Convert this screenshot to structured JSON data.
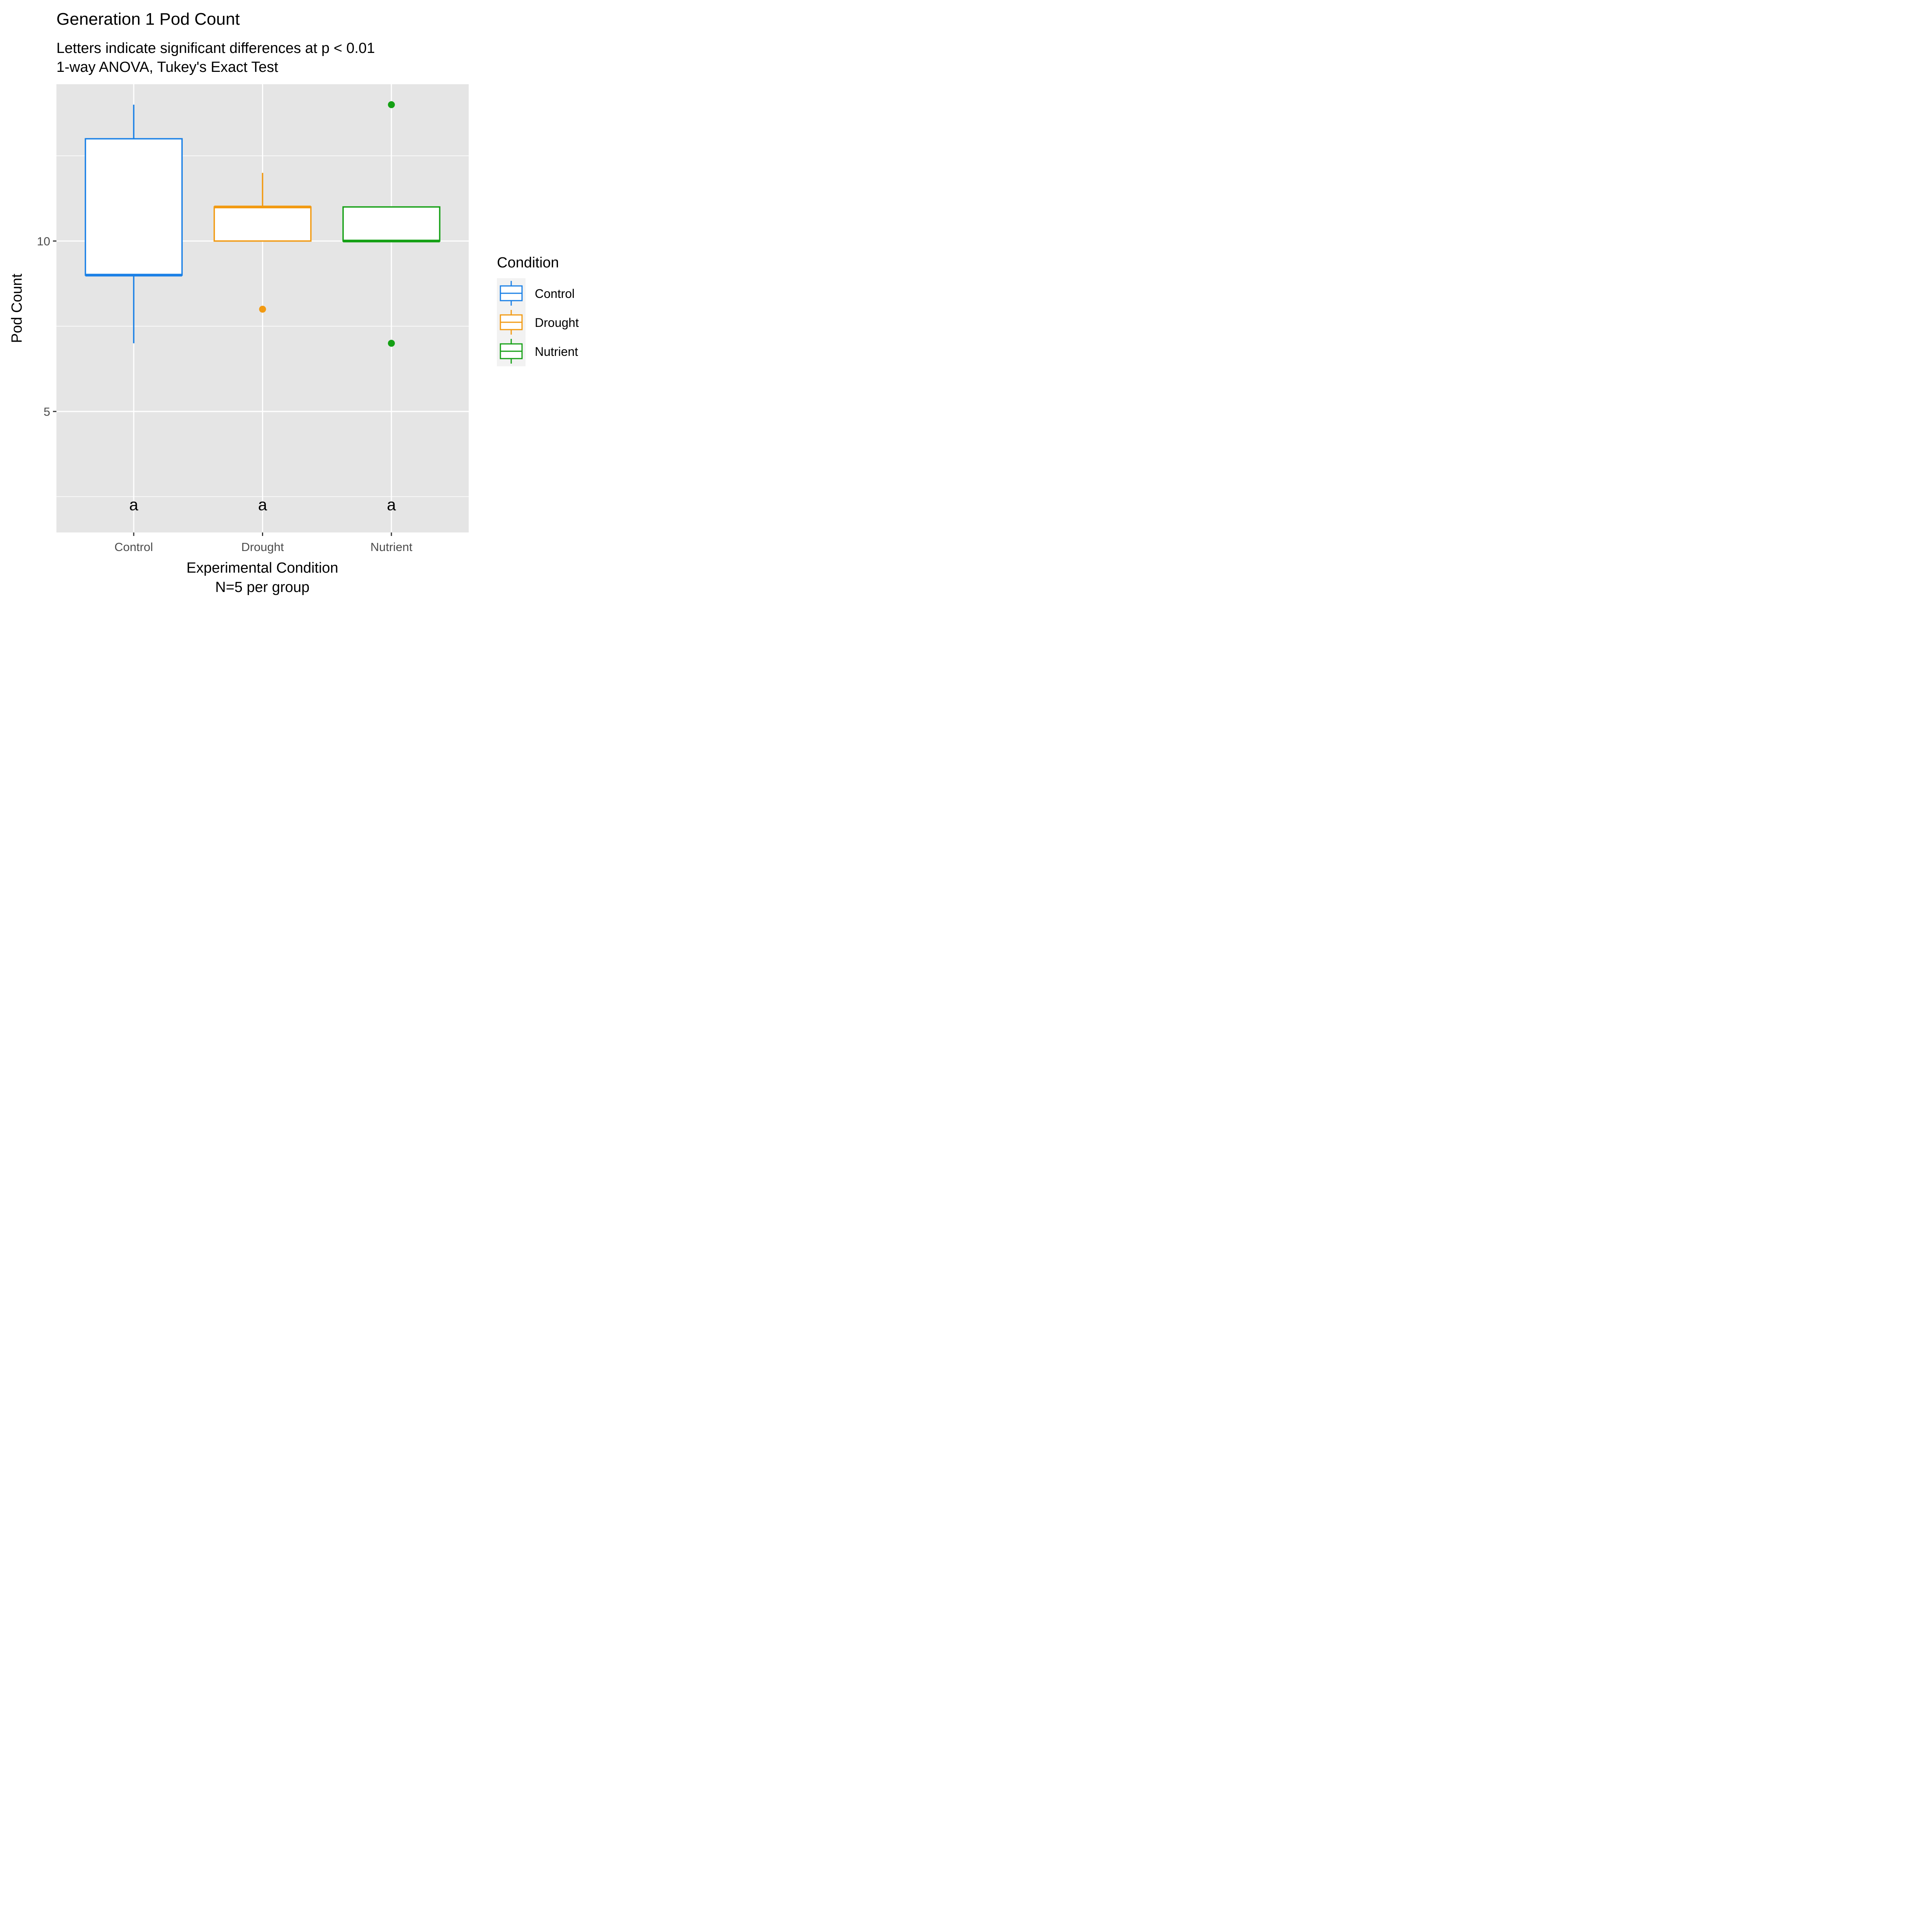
{
  "chart_data": {
    "type": "boxplot",
    "title": "Generation 1 Pod Count",
    "subtitle_lines": [
      "Letters indicate significant differences at p < 0.01",
      "1-way ANOVA, Tukey's Exact Test"
    ],
    "xlabel_lines": [
      "Experimental Condition",
      "N=5 per group"
    ],
    "ylabel": "Pod Count",
    "categories": [
      "Control",
      "Drought",
      "Nutrient"
    ],
    "y_ticks": [
      5,
      10
    ],
    "ylim": [
      1.45,
      14.6
    ],
    "grid": true,
    "series": [
      {
        "name": "Control",
        "color": "#1a80e6",
        "min": 7,
        "q1": 9,
        "median": 9,
        "q3": 13,
        "max": 14,
        "outliers": [],
        "letter": "a"
      },
      {
        "name": "Drought",
        "color": "#f29a12",
        "min": 10,
        "q1": 10,
        "median": 11,
        "q3": 11,
        "max": 12,
        "outliers": [
          8
        ],
        "letter": "a"
      },
      {
        "name": "Nutrient",
        "color": "#14a014",
        "min": 10,
        "q1": 10,
        "median": 10,
        "q3": 11,
        "max": 11,
        "outliers": [
          14,
          7
        ],
        "letter": "a"
      }
    ],
    "legend": {
      "title": "Condition",
      "position": "right",
      "items": [
        "Control",
        "Drought",
        "Nutrient"
      ]
    }
  }
}
